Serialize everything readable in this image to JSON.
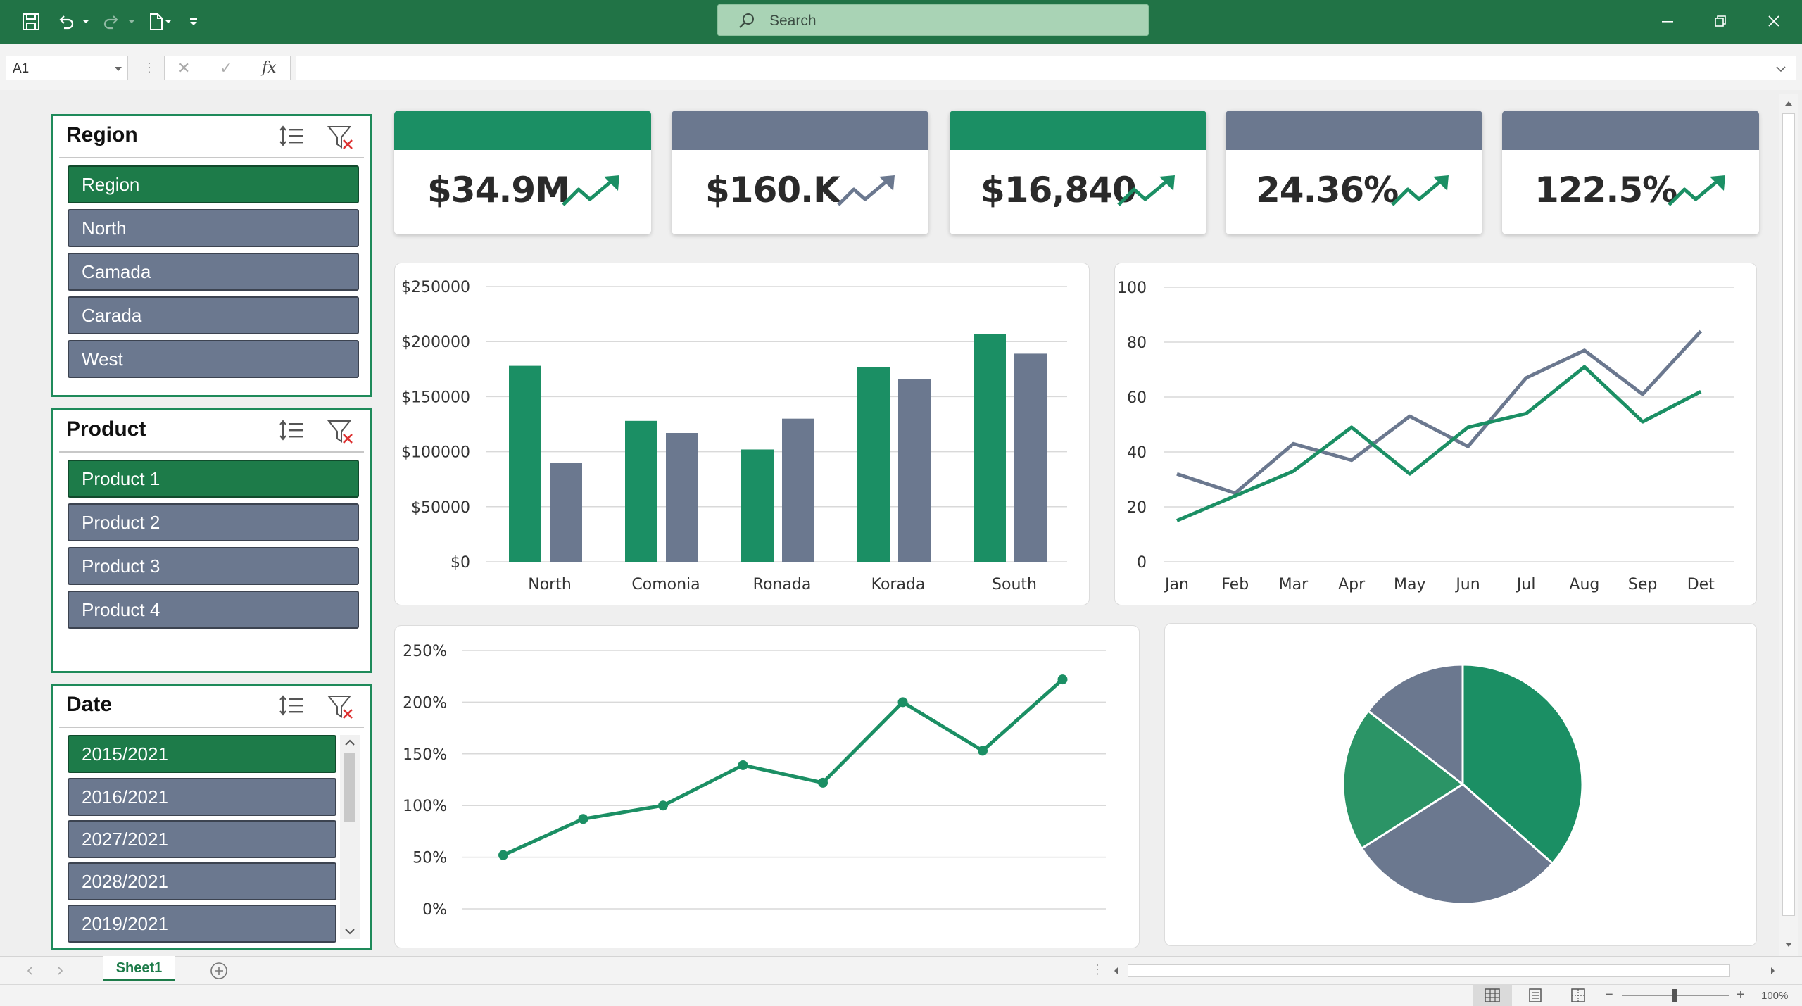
{
  "app": {
    "search_placeholder": "Search",
    "namebox_value": "A1",
    "formula_value": "",
    "sheet_tab": "Sheet1",
    "zoom": "100%"
  },
  "colors": {
    "excel_green": "#217346",
    "accent_green": "#1b8f64",
    "slate": "#6b788f",
    "slicer_selected": "#1d7b49"
  },
  "icons": [
    "save-icon",
    "undo-icon",
    "redo-icon",
    "new-file-icon",
    "customize-toolbar-icon",
    "search-icon",
    "minimize-icon",
    "restore-icon",
    "close-icon",
    "cancel-icon",
    "enter-icon",
    "fx-icon",
    "multi-select-icon",
    "clear-filter-icon",
    "trend-up-icon",
    "add-sheet-icon",
    "normal-view-icon",
    "page-layout-icon",
    "page-break-icon"
  ],
  "slicers": {
    "region": {
      "title": "Region",
      "items": [
        "Region",
        "North",
        "Camada",
        "Carada",
        "West"
      ],
      "selected": 0
    },
    "product": {
      "title": "Product",
      "items": [
        "Product 1",
        "Product 2",
        "Product 3",
        "Product 4"
      ],
      "selected": 0
    },
    "date": {
      "title": "Date",
      "items": [
        "2015/2021",
        "2016/2021",
        "2027/2021",
        "2028/2021",
        "2019/2021"
      ],
      "selected": 0
    }
  },
  "kpis": [
    {
      "value": "$34.9M",
      "band": "green",
      "trend": "up"
    },
    {
      "value": "$160.K",
      "band": "slate",
      "trend": "up"
    },
    {
      "value": "$16,840",
      "band": "green",
      "trend": "up"
    },
    {
      "value": "24.36%",
      "band": "slate",
      "trend": "up"
    },
    {
      "value": "122.5%",
      "band": "slate",
      "trend": "up"
    }
  ],
  "chart_data": [
    {
      "type": "bar",
      "categories": [
        "North",
        "Comonia",
        "Ronada",
        "Korada",
        "South"
      ],
      "series": [
        {
          "values": [
            178000,
            128000,
            102000,
            177000,
            207000
          ],
          "color": "#1b8f64"
        },
        {
          "values": [
            90000,
            117000,
            130000,
            166000,
            189000
          ],
          "color": "#6b788f"
        }
      ],
      "y_ticks": [
        "$0",
        "$50000",
        "$100000",
        "$150000",
        "$200000",
        "$250000"
      ],
      "ylim": [
        0,
        250000
      ],
      "grid": true
    },
    {
      "type": "line",
      "categories": [
        "Jan",
        "Feb",
        "Mar",
        "Apr",
        "May",
        "Jun",
        "Jul",
        "Aug",
        "Sep",
        "Det"
      ],
      "series": [
        {
          "values": [
            32,
            25,
            43,
            37,
            53,
            42,
            67,
            77,
            61,
            84
          ],
          "color": "#6b788f"
        },
        {
          "values": [
            15,
            24,
            33,
            49,
            32,
            49,
            54,
            71,
            51,
            62
          ],
          "color": "#1b8f64"
        }
      ],
      "y_ticks": [
        "0",
        "20",
        "40",
        "60",
        "80",
        "100"
      ],
      "ylim": [
        0,
        100
      ],
      "grid": true
    },
    {
      "type": "line",
      "x": [
        1,
        2,
        3,
        4,
        5,
        6,
        7,
        8
      ],
      "series": [
        {
          "values": [
            52,
            87,
            100,
            139,
            122,
            200,
            153,
            222
          ],
          "color": "#1b8f64",
          "markers": true
        }
      ],
      "y_ticks": [
        "0%",
        "50%",
        "100%",
        "150%",
        "200%",
        "250%"
      ],
      "ylim": [
        0,
        250
      ],
      "grid": true
    },
    {
      "type": "pie",
      "slices": [
        {
          "value": 36.5,
          "color": "#1b8f64"
        },
        {
          "value": 29.5,
          "color": "#6b788f"
        },
        {
          "value": 19.5,
          "color": "#2b9466"
        },
        {
          "value": 14.5,
          "color": "#6b788f"
        }
      ]
    }
  ]
}
